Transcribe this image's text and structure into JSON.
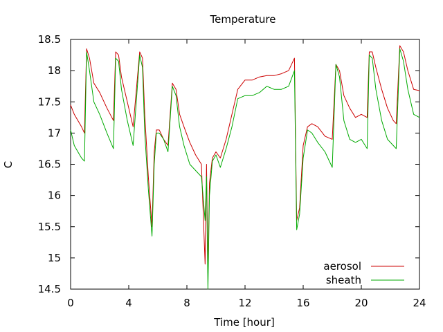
{
  "chart_data": {
    "type": "line",
    "title": "Temperature",
    "xlabel": "Time [hour]",
    "ylabel": "C",
    "xlim": [
      0,
      24
    ],
    "ylim": [
      14.5,
      18.5
    ],
    "xticks": [
      0,
      4,
      8,
      12,
      16,
      20,
      24
    ],
    "yticks": [
      14.5,
      15,
      15.5,
      16,
      16.5,
      17,
      17.5,
      18,
      18.5
    ],
    "grid": false,
    "legend_position": "bottom-right",
    "series": [
      {
        "name": "aerosol",
        "color": "#cc0000",
        "x": [
          0,
          0.25,
          0.5,
          0.75,
          0.95,
          1.1,
          1.3,
          1.6,
          2.0,
          2.5,
          2.95,
          3.1,
          3.3,
          3.5,
          3.9,
          4.3,
          4.75,
          4.95,
          5.1,
          5.35,
          5.6,
          5.75,
          5.9,
          6.1,
          6.4,
          6.7,
          7.0,
          7.25,
          7.5,
          7.8,
          8.2,
          8.6,
          9.0,
          9.25,
          9.35,
          9.45,
          9.55,
          9.75,
          10.0,
          10.3,
          10.7,
          11.1,
          11.5,
          12.0,
          12.5,
          13.0,
          13.5,
          14.0,
          14.5,
          15.0,
          15.4,
          15.55,
          15.75,
          16.0,
          16.3,
          16.6,
          17.0,
          17.5,
          18.0,
          18.25,
          18.5,
          18.8,
          19.2,
          19.6,
          20.0,
          20.4,
          20.55,
          20.75,
          21.0,
          21.4,
          21.8,
          22.2,
          22.4,
          22.65,
          22.9,
          23.2,
          23.6,
          24.0
        ],
        "values": [
          17.45,
          17.3,
          17.2,
          17.1,
          17.0,
          18.35,
          18.2,
          17.8,
          17.65,
          17.4,
          17.2,
          18.3,
          18.25,
          17.9,
          17.5,
          17.1,
          18.3,
          18.2,
          17.3,
          16.3,
          15.5,
          16.7,
          17.05,
          17.05,
          16.9,
          16.8,
          17.8,
          17.7,
          17.3,
          17.1,
          16.85,
          16.65,
          16.5,
          14.9,
          16.5,
          14.75,
          16.2,
          16.6,
          16.7,
          16.6,
          16.9,
          17.3,
          17.7,
          17.85,
          17.85,
          17.9,
          17.92,
          17.92,
          17.95,
          18.0,
          18.2,
          15.6,
          15.8,
          16.8,
          17.1,
          17.15,
          17.1,
          16.95,
          16.9,
          18.1,
          18.0,
          17.6,
          17.4,
          17.25,
          17.3,
          17.25,
          18.3,
          18.3,
          18.05,
          17.7,
          17.4,
          17.2,
          17.15,
          18.4,
          18.3,
          18.0,
          17.7,
          17.68
        ]
      },
      {
        "name": "sheath",
        "color": "#00aa00",
        "x": [
          0,
          0.25,
          0.5,
          0.75,
          0.95,
          1.1,
          1.3,
          1.6,
          2.0,
          2.5,
          2.95,
          3.1,
          3.3,
          3.5,
          3.9,
          4.3,
          4.75,
          4.95,
          5.1,
          5.35,
          5.6,
          5.75,
          5.9,
          6.1,
          6.4,
          6.7,
          7.0,
          7.25,
          7.5,
          7.8,
          8.2,
          8.6,
          9.0,
          9.25,
          9.35,
          9.45,
          9.55,
          9.75,
          10.0,
          10.3,
          10.7,
          11.1,
          11.5,
          12.0,
          12.5,
          13.0,
          13.5,
          14.0,
          14.5,
          15.0,
          15.4,
          15.55,
          15.75,
          16.0,
          16.3,
          16.6,
          17.0,
          17.5,
          18.0,
          18.25,
          18.5,
          18.8,
          19.2,
          19.6,
          20.0,
          20.4,
          20.55,
          20.75,
          21.0,
          21.4,
          21.8,
          22.2,
          22.4,
          22.65,
          22.9,
          23.2,
          23.6,
          24.0
        ],
        "values": [
          17.05,
          16.8,
          16.7,
          16.6,
          16.55,
          18.3,
          18.0,
          17.5,
          17.3,
          17.0,
          16.75,
          18.2,
          18.15,
          17.7,
          17.2,
          16.8,
          18.25,
          18.05,
          17.0,
          16.1,
          15.35,
          16.5,
          17.0,
          17.0,
          16.9,
          16.7,
          17.75,
          17.6,
          17.1,
          16.8,
          16.5,
          16.4,
          16.3,
          15.6,
          16.3,
          14.5,
          16.0,
          16.55,
          16.65,
          16.45,
          16.75,
          17.1,
          17.55,
          17.6,
          17.6,
          17.65,
          17.75,
          17.7,
          17.7,
          17.75,
          18.0,
          15.45,
          15.7,
          16.6,
          17.05,
          17.0,
          16.85,
          16.7,
          16.45,
          18.1,
          17.9,
          17.2,
          16.9,
          16.85,
          16.9,
          16.75,
          18.25,
          18.2,
          17.7,
          17.2,
          16.9,
          16.8,
          16.75,
          18.35,
          18.15,
          17.7,
          17.3,
          17.25
        ]
      }
    ]
  }
}
